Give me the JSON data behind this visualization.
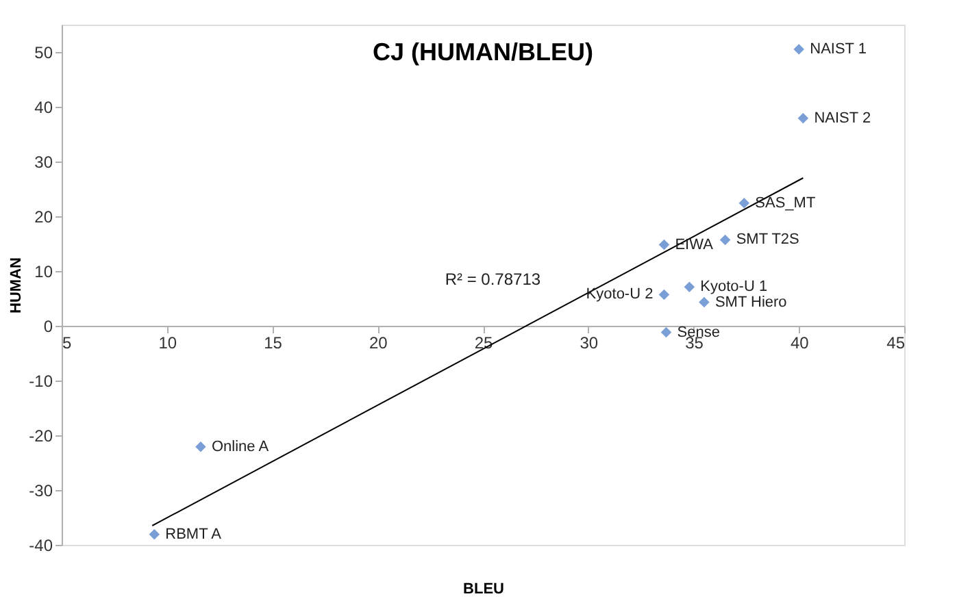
{
  "chart_data": {
    "type": "scatter",
    "title": "CJ (HUMAN/BLEU)",
    "xlabel": "BLEU",
    "ylabel": "HUMAN",
    "xlim": [
      5,
      45
    ],
    "xticks": [
      5,
      10,
      15,
      20,
      25,
      30,
      35,
      40,
      45
    ],
    "ylim": [
      -40,
      55
    ],
    "yticks": [
      -40,
      -30,
      -20,
      -10,
      0,
      10,
      20,
      30,
      40,
      50
    ],
    "grid": false,
    "marker": "diamond",
    "series": [
      {
        "color": "#7a9fd6",
        "x": [
          40.0,
          40.2,
          37.4,
          36.5,
          33.6,
          34.8,
          33.6,
          35.5,
          33.7,
          11.6,
          9.4
        ],
        "values": [
          50.5,
          37.9,
          22.4,
          15.7,
          14.8,
          7.1,
          5.7,
          4.3,
          -1.2,
          -22.1,
          -38.1
        ]
      },
      {
        "type": "line",
        "marker": "none",
        "color": "#000000",
        "line_style": "solid",
        "x": [
          9.3,
          40.2
        ],
        "values": [
          -36.5,
          27.0
        ]
      }
    ],
    "annotations": [
      {
        "text": "NAIST 1",
        "x": 40.0,
        "y": 50.5
      },
      {
        "text": "NAIST 2",
        "x": 40.2,
        "y": 37.9
      },
      {
        "text": "SAS_MT",
        "x": 37.4,
        "y": 22.4
      },
      {
        "text": "SMT T2S",
        "x": 36.5,
        "y": 15.7
      },
      {
        "text": "EIWA",
        "x": 33.6,
        "y": 14.8
      },
      {
        "text": "Kyoto-U 1",
        "x": 34.8,
        "y": 7.1
      },
      {
        "text": "Kyoto-U 2",
        "x": 33.6,
        "y": 5.7
      },
      {
        "text": "SMT Hiero",
        "x": 35.5,
        "y": 4.3
      },
      {
        "text": "Sense",
        "x": 33.7,
        "y": -1.2
      },
      {
        "text": "Online A",
        "x": 11.6,
        "y": -22.1
      },
      {
        "text": "RBMT A",
        "x": 9.4,
        "y": -38.1
      },
      "R² = 0.78713"
    ]
  }
}
